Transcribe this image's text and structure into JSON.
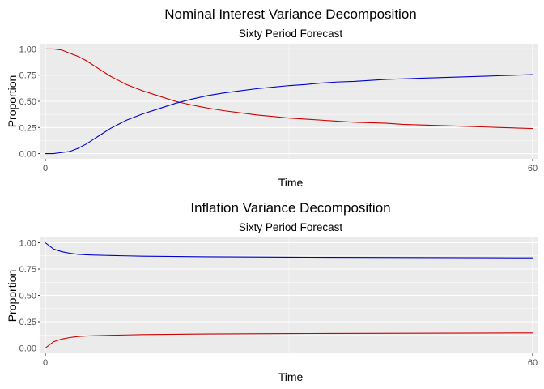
{
  "chart_data": [
    {
      "type": "line",
      "title": "Nominal Interest Variance Decomposition",
      "subtitle": "Sixty Period Forecast",
      "xlabel": "Time",
      "ylabel": "Proportion",
      "xlim": [
        0,
        60
      ],
      "ylim": [
        0,
        1
      ],
      "xticks": [
        0,
        60
      ],
      "yticks": [
        "0.00",
        "0.25",
        "0.50",
        "0.75",
        "1.00"
      ],
      "grid": true,
      "x": [
        0,
        1,
        2,
        3,
        4,
        5,
        6,
        7,
        8,
        9,
        10,
        12,
        14,
        16,
        18,
        20,
        22,
        24,
        26,
        28,
        30,
        32,
        34,
        36,
        38,
        40,
        42,
        44,
        46,
        48,
        50,
        52,
        54,
        56,
        58,
        60
      ],
      "series": [
        {
          "color": "#cc0000",
          "values": [
            1.0,
            1.0,
            0.99,
            0.96,
            0.93,
            0.89,
            0.84,
            0.79,
            0.74,
            0.7,
            0.66,
            0.6,
            0.55,
            0.5,
            0.465,
            0.435,
            0.41,
            0.39,
            0.37,
            0.355,
            0.34,
            0.33,
            0.32,
            0.31,
            0.3,
            0.295,
            0.29,
            0.28,
            0.275,
            0.27,
            0.265,
            0.26,
            0.255,
            0.25,
            0.245,
            0.24
          ]
        },
        {
          "color": "#0000cc",
          "values": [
            0.0,
            0.0,
            0.01,
            0.02,
            0.05,
            0.09,
            0.14,
            0.19,
            0.24,
            0.28,
            0.32,
            0.38,
            0.43,
            0.48,
            0.52,
            0.555,
            0.58,
            0.6,
            0.62,
            0.635,
            0.65,
            0.66,
            0.675,
            0.685,
            0.69,
            0.7,
            0.71,
            0.715,
            0.72,
            0.725,
            0.73,
            0.735,
            0.74,
            0.745,
            0.75,
            0.755
          ]
        }
      ]
    },
    {
      "type": "line",
      "title": "Inflation Variance Decomposition",
      "subtitle": "Sixty Period Forecast",
      "xlabel": "Time",
      "ylabel": "Proportion",
      "xlim": [
        0,
        60
      ],
      "ylim": [
        0,
        1
      ],
      "xticks": [
        0,
        60
      ],
      "yticks": [
        "0.00",
        "0.25",
        "0.50",
        "0.75",
        "1.00"
      ],
      "grid": true,
      "x": [
        0,
        1,
        2,
        3,
        4,
        5,
        6,
        7,
        8,
        10,
        12,
        15,
        20,
        25,
        30,
        35,
        40,
        45,
        50,
        55,
        60
      ],
      "series": [
        {
          "color": "#0000cc",
          "values": [
            1.0,
            0.94,
            0.915,
            0.9,
            0.89,
            0.885,
            0.882,
            0.88,
            0.878,
            0.875,
            0.872,
            0.87,
            0.866,
            0.864,
            0.862,
            0.861,
            0.86,
            0.859,
            0.858,
            0.857,
            0.856
          ]
        },
        {
          "color": "#cc0000",
          "values": [
            0.0,
            0.06,
            0.085,
            0.1,
            0.11,
            0.115,
            0.118,
            0.12,
            0.122,
            0.125,
            0.128,
            0.13,
            0.134,
            0.136,
            0.138,
            0.139,
            0.14,
            0.141,
            0.142,
            0.143,
            0.144
          ]
        }
      ]
    }
  ]
}
